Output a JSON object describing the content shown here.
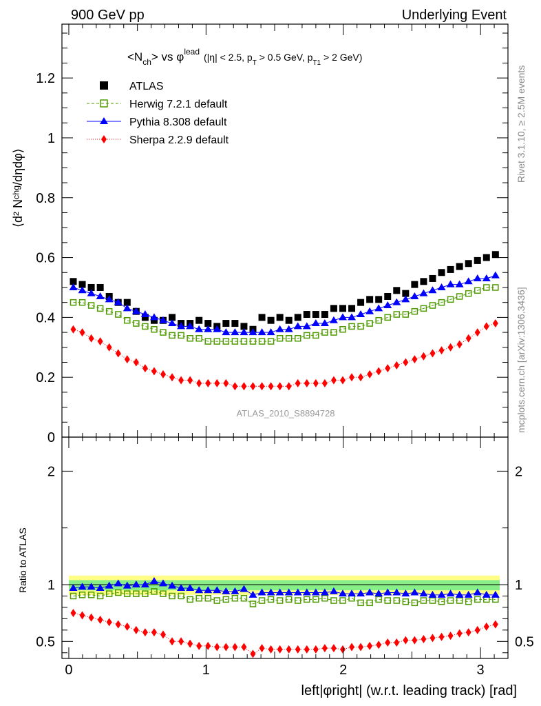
{
  "header": {
    "left": "900 GeV pp",
    "right": "Underlying Event"
  },
  "side_labels": {
    "rivet": "Rivet 3.1.10, ≥ 2.5M events",
    "mcplots": "mcplots.cern.ch [arXiv:1306.3436]"
  },
  "plot_title": {
    "main": "<N",
    "sub_ch": "ch",
    "mid": "> vs φ",
    "sup_lead": "lead",
    "cuts": "(|η| < 2.5, p",
    "sub_T": "T",
    "cuts2": " > 0.5 GeV, p",
    "sub_T1": "T1",
    "cuts3": " > 2 GeV)"
  },
  "analysis_label": "ATLAS_2010_S8894728",
  "y_label_main": "⟨d² Nᶜʰᵍ/dηdφ⟩",
  "y_label_ratio": "Ratio to ATLAS",
  "x_label": "left|φright| (w.r.t. leading track) [rad]",
  "legend": [
    {
      "name": "ATLAS",
      "color": "#000000",
      "marker": "square"
    },
    {
      "name": "Herwig 7.2.1 default",
      "color": "#4f9a00",
      "marker": "open-square"
    },
    {
      "name": "Pythia 8.308 default",
      "color": "#0000ff",
      "marker": "triangle"
    },
    {
      "name": "Sherpa 2.2.9 default",
      "color": "#ff0000",
      "marker": "diamond"
    }
  ],
  "chart_data": {
    "type": "scatter",
    "xlim": [
      -0.05,
      3.2
    ],
    "ylim_main": [
      0,
      1.38
    ],
    "ylim_ratio": [
      0.35,
      2.3
    ],
    "x_ticks": [
      0,
      1,
      2,
      3
    ],
    "y_ticks_main": [
      0,
      0.2,
      0.4,
      0.6,
      0.8,
      1,
      1.2
    ],
    "y_tick_labels_main": [
      "0",
      "0.2",
      "0.4",
      "0.6",
      "0.8",
      "1",
      "1.2"
    ],
    "y_ticks_ratio": [
      0.5,
      1,
      2
    ],
    "y_tick_labels_ratio": [
      "0.5",
      "1",
      "2"
    ],
    "x": [
      0.0327,
      0.0982,
      0.1636,
      0.2291,
      0.2945,
      0.36,
      0.4254,
      0.4909,
      0.5563,
      0.6218,
      0.6872,
      0.7527,
      0.8181,
      0.8836,
      0.949,
      1.0145,
      1.0799,
      1.1454,
      1.2108,
      1.2763,
      1.3417,
      1.4072,
      1.4726,
      1.5381,
      1.6035,
      1.669,
      1.7344,
      1.7999,
      1.8653,
      1.9308,
      1.9962,
      2.0617,
      2.1271,
      2.1926,
      2.258,
      2.3235,
      2.3889,
      2.4544,
      2.5198,
      2.5853,
      2.6507,
      2.7162,
      2.7816,
      2.8471,
      2.9125,
      2.978,
      3.0434,
      3.1089
    ],
    "series": [
      {
        "name": "ATLAS",
        "values": [
          0.52,
          0.51,
          0.5,
          0.5,
          0.47,
          0.45,
          0.45,
          0.42,
          0.4,
          0.39,
          0.39,
          0.4,
          0.38,
          0.38,
          0.39,
          0.38,
          0.37,
          0.38,
          0.38,
          0.37,
          0.36,
          0.4,
          0.39,
          0.4,
          0.39,
          0.4,
          0.41,
          0.41,
          0.41,
          0.43,
          0.43,
          0.43,
          0.45,
          0.46,
          0.46,
          0.47,
          0.49,
          0.48,
          0.51,
          0.52,
          0.53,
          0.55,
          0.56,
          0.57,
          0.58,
          0.59,
          0.6,
          0.61
        ]
      },
      {
        "name": "Herwig 7.2.1 default",
        "values": [
          0.45,
          0.45,
          0.44,
          0.43,
          0.42,
          0.41,
          0.39,
          0.38,
          0.37,
          0.36,
          0.35,
          0.34,
          0.34,
          0.33,
          0.33,
          0.32,
          0.32,
          0.32,
          0.32,
          0.32,
          0.32,
          0.32,
          0.32,
          0.33,
          0.33,
          0.33,
          0.34,
          0.34,
          0.35,
          0.35,
          0.36,
          0.37,
          0.37,
          0.38,
          0.39,
          0.4,
          0.41,
          0.41,
          0.42,
          0.43,
          0.44,
          0.45,
          0.46,
          0.47,
          0.48,
          0.49,
          0.5,
          0.5
        ]
      },
      {
        "name": "Pythia 8.308 default",
        "values": [
          0.5,
          0.49,
          0.48,
          0.47,
          0.46,
          0.45,
          0.43,
          0.42,
          0.41,
          0.4,
          0.39,
          0.38,
          0.37,
          0.37,
          0.36,
          0.36,
          0.36,
          0.35,
          0.35,
          0.35,
          0.35,
          0.35,
          0.35,
          0.36,
          0.36,
          0.37,
          0.37,
          0.38,
          0.38,
          0.39,
          0.4,
          0.4,
          0.41,
          0.42,
          0.43,
          0.44,
          0.45,
          0.46,
          0.47,
          0.48,
          0.49,
          0.5,
          0.51,
          0.51,
          0.52,
          0.53,
          0.53,
          0.54
        ]
      },
      {
        "name": "Sherpa 2.2.9 default",
        "values": [
          0.36,
          0.35,
          0.33,
          0.32,
          0.3,
          0.28,
          0.26,
          0.25,
          0.23,
          0.22,
          0.21,
          0.2,
          0.19,
          0.19,
          0.18,
          0.18,
          0.18,
          0.18,
          0.17,
          0.17,
          0.17,
          0.17,
          0.17,
          0.17,
          0.17,
          0.18,
          0.18,
          0.18,
          0.18,
          0.19,
          0.19,
          0.2,
          0.2,
          0.21,
          0.22,
          0.23,
          0.24,
          0.25,
          0.26,
          0.27,
          0.28,
          0.29,
          0.3,
          0.31,
          0.33,
          0.35,
          0.37,
          0.38
        ]
      }
    ],
    "ratio_series": [
      {
        "name": "Herwig 7.2.1 default",
        "values": [
          0.9,
          0.91,
          0.91,
          0.9,
          0.92,
          0.93,
          0.92,
          0.92,
          0.92,
          0.94,
          0.92,
          0.9,
          0.9,
          0.87,
          0.88,
          0.88,
          0.86,
          0.87,
          0.88,
          0.88,
          0.83,
          0.86,
          0.87,
          0.86,
          0.87,
          0.86,
          0.87,
          0.87,
          0.88,
          0.86,
          0.86,
          0.88,
          0.84,
          0.84,
          0.87,
          0.86,
          0.86,
          0.85,
          0.84,
          0.86,
          0.86,
          0.85,
          0.86,
          0.86,
          0.85,
          0.87,
          0.87,
          0.87
        ]
      },
      {
        "name": "Pythia 8.308 default",
        "values": [
          0.97,
          0.98,
          0.98,
          0.97,
          0.99,
          1.01,
          0.99,
          1.0,
          1.0,
          1.03,
          1.01,
          0.99,
          0.97,
          0.97,
          0.95,
          0.95,
          0.95,
          0.94,
          0.94,
          0.96,
          0.91,
          0.93,
          0.93,
          0.93,
          0.93,
          0.93,
          0.93,
          0.93,
          0.93,
          0.94,
          0.92,
          0.92,
          0.92,
          0.93,
          0.92,
          0.93,
          0.93,
          0.92,
          0.93,
          0.92,
          0.91,
          0.91,
          0.92,
          0.91,
          0.91,
          0.93,
          0.91,
          0.91
        ]
      },
      {
        "name": "Sherpa 2.2.9 default",
        "values": [
          0.75,
          0.73,
          0.71,
          0.69,
          0.67,
          0.65,
          0.63,
          0.6,
          0.58,
          0.58,
          0.56,
          0.5,
          0.5,
          0.48,
          0.46,
          0.46,
          0.45,
          0.45,
          0.45,
          0.45,
          0.39,
          0.44,
          0.43,
          0.43,
          0.43,
          0.43,
          0.43,
          0.43,
          0.44,
          0.44,
          0.43,
          0.45,
          0.45,
          0.46,
          0.47,
          0.49,
          0.49,
          0.51,
          0.51,
          0.52,
          0.53,
          0.54,
          0.55,
          0.57,
          0.58,
          0.6,
          0.63,
          0.65
        ]
      }
    ],
    "ratio_band": {
      "inner": [
        0.95,
        1.04
      ],
      "outer": [
        0.91,
        1.08
      ]
    }
  }
}
